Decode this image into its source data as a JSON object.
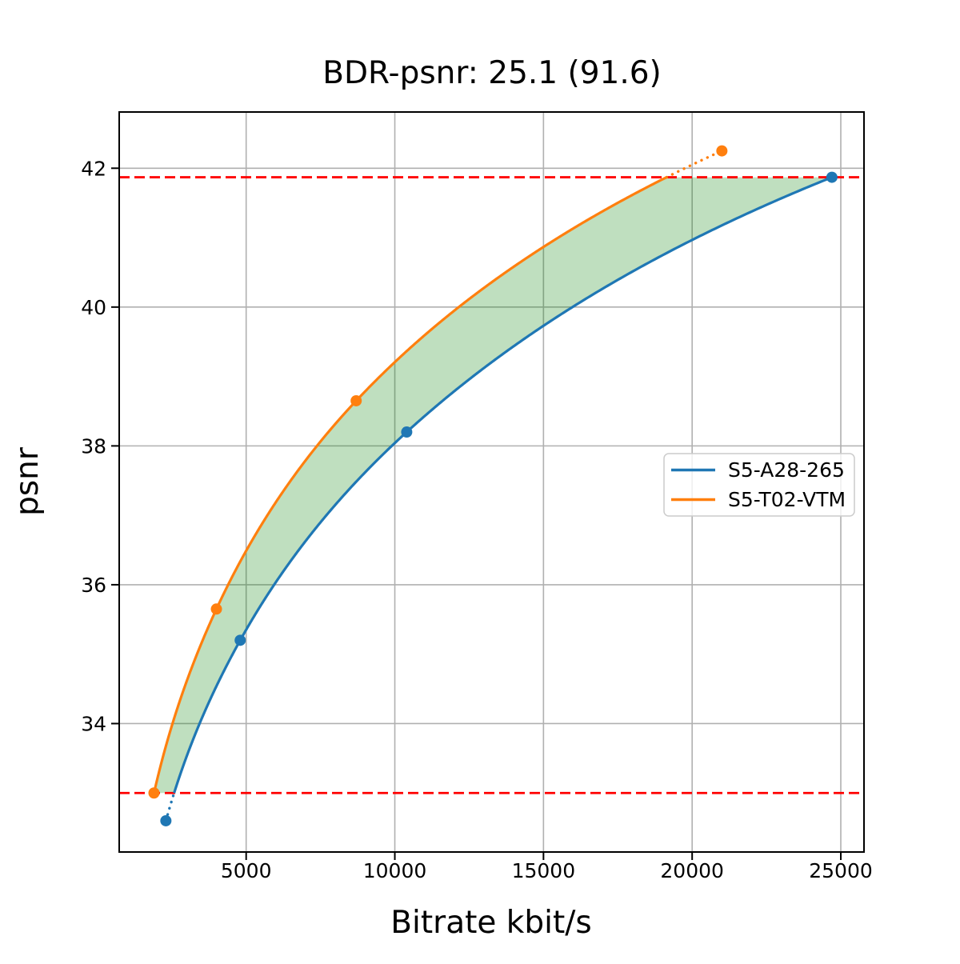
{
  "chart_data": {
    "type": "line",
    "title": "BDR-psnr: 25.1 (91.6)",
    "xlabel": "Bitrate kbit/s",
    "ylabel": "psnr",
    "xlim": [
      730,
      25780
    ],
    "ylim": [
      32.15,
      42.81
    ],
    "x_tick_values": [
      5000,
      10000,
      15000,
      20000,
      25000
    ],
    "x_tick_labels": [
      "5000",
      "10000",
      "15000",
      "20000",
      "25000"
    ],
    "y_tick_values": [
      34,
      36,
      38,
      40,
      42
    ],
    "y_tick_labels": [
      "34",
      "36",
      "38",
      "40",
      "42"
    ],
    "grid": true,
    "grid_color": "#b0b0b0",
    "series": [
      {
        "name": "S5-A28-265",
        "color": "#1f77b4",
        "x": [
          2300,
          4800,
          10400,
          24700
        ],
        "y": [
          32.6,
          35.2,
          38.2,
          41.87
        ]
      },
      {
        "name": "S5-T02-VTM",
        "color": "#ff7f0e",
        "x": [
          1900,
          4000,
          8700,
          21000
        ],
        "y": [
          33.0,
          35.65,
          38.65,
          42.25
        ]
      }
    ],
    "overlap_band": {
      "psnr_low": 33.0,
      "psnr_high": 41.87,
      "line_color": "#ff0000",
      "line_style": "dashed",
      "fill_color": "#008000",
      "fill_opacity": 0.25
    },
    "legend": {
      "position": "center right",
      "entries": [
        "S5-A28-265",
        "S5-T02-VTM"
      ]
    }
  }
}
